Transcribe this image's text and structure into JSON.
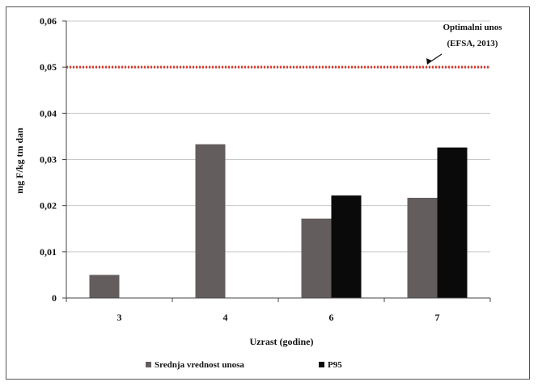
{
  "chart_data": {
    "type": "bar",
    "categories": [
      "3",
      "4",
      "6",
      "7"
    ],
    "series": [
      {
        "name": "Srednja vrednost unosa",
        "values": [
          0.005,
          0.0333,
          0.0172,
          0.0217
        ],
        "color": "#645d5e"
      },
      {
        "name": "P95",
        "values": [
          null,
          null,
          0.0222,
          0.0326
        ],
        "color": "#0a0a0a"
      }
    ],
    "title": "",
    "xlabel": "Uzrast (godine)",
    "ylabel": "mg F/kg tm dan",
    "ylim": [
      0,
      0.06
    ],
    "yticks": [
      "0",
      "0,01",
      "0,02",
      "0,03",
      "0,04",
      "0,05",
      "0,06"
    ],
    "reference_line": {
      "value": 0.05,
      "color": "#d9342b",
      "label_lines": [
        "Optimalni unos",
        "(EFSA, 2013)"
      ]
    },
    "grid": true,
    "legend_position": "bottom"
  }
}
